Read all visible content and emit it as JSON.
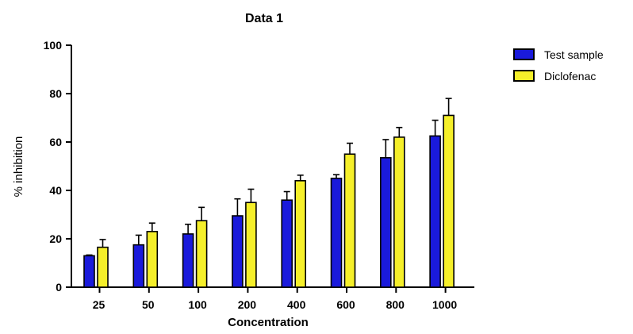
{
  "chart_data": {
    "type": "bar",
    "title": "Data 1",
    "xlabel": "Concentration",
    "ylabel": "% inhibition",
    "categories": [
      "25",
      "50",
      "100",
      "200",
      "400",
      "600",
      "800",
      "1000"
    ],
    "ylim": [
      0,
      100
    ],
    "yticks": [
      0,
      20,
      40,
      60,
      80,
      100
    ],
    "grid": false,
    "legend_position": "top-right",
    "series": [
      {
        "name": "Test sample",
        "color": "#1a1adb",
        "values": [
          13,
          17.5,
          22,
          29.5,
          36,
          45,
          53.5,
          62.5
        ],
        "errors": [
          0.3,
          4,
          4,
          7,
          3.5,
          1.5,
          7.5,
          6.5
        ]
      },
      {
        "name": "Diclofenac",
        "color": "#f5ef2a",
        "values": [
          16.5,
          23,
          27.5,
          35,
          44,
          55,
          62,
          71
        ],
        "errors": [
          3.2,
          3.5,
          5.5,
          5.5,
          2.3,
          4.5,
          4,
          7
        ]
      }
    ]
  }
}
